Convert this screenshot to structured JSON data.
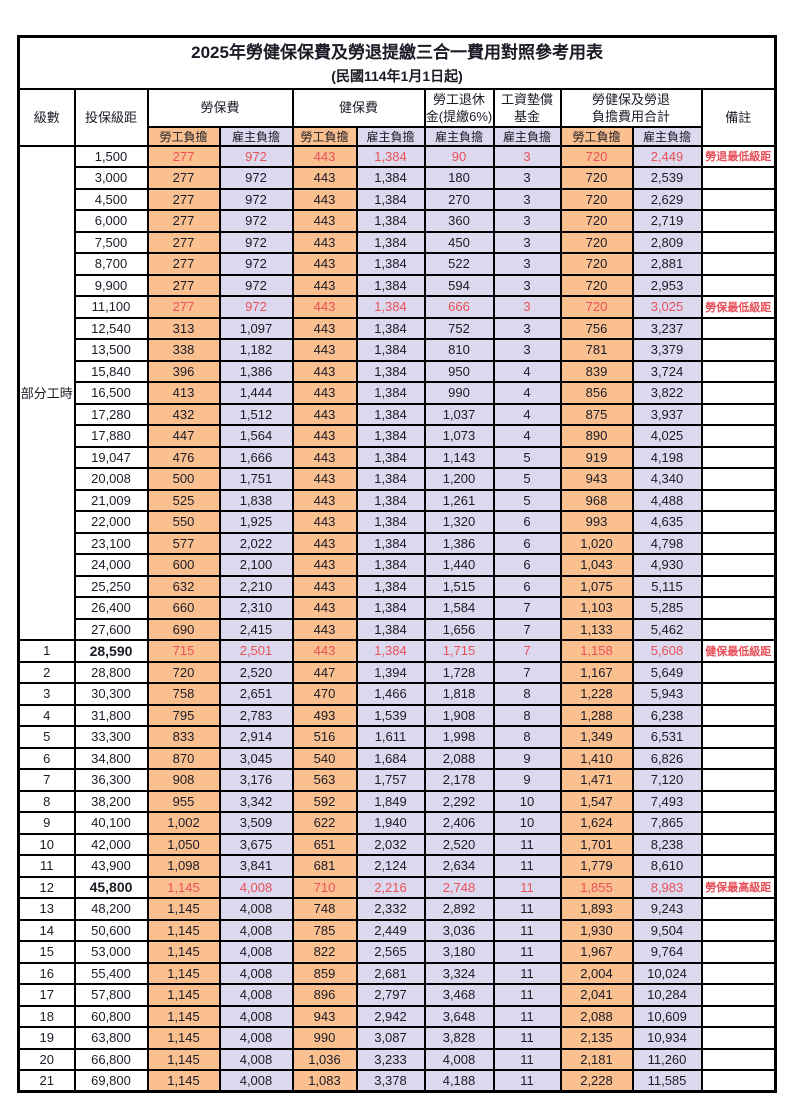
{
  "title": "2025年勞健保保費及勞退提繳三合一費用對照參考用表",
  "subtitle": "(民國114年1月1日起)",
  "colors": {
    "employee_bg": "#fac090",
    "employer_bg": "#dcd9ee",
    "highlight_text": "#e8515a",
    "border": "#000000"
  },
  "header": {
    "level": "級數",
    "bracket": "投保級距",
    "labor": "勞保費",
    "health": "健保費",
    "pension": "勞工退休\n金(提繳6%)",
    "wage_fund": "工資墊償\n基金",
    "total": "勞健保及勞退\n負擔費用合計",
    "remark": "備註",
    "employee": "勞工負擔",
    "employer": "雇主負擔"
  },
  "table": {
    "part_time_label": "部分工時",
    "part_time_rowspan": 23,
    "rows": [
      {
        "level": "",
        "bracket": "1,500",
        "values": [
          "277",
          "972",
          "443",
          "1,384",
          "90",
          "3",
          "720",
          "2,449"
        ],
        "remark": "勞退最低級距",
        "red": true,
        "bold": false
      },
      {
        "level": "",
        "bracket": "3,000",
        "values": [
          "277",
          "972",
          "443",
          "1,384",
          "180",
          "3",
          "720",
          "2,539"
        ],
        "remark": "",
        "red": false,
        "bold": false
      },
      {
        "level": "",
        "bracket": "4,500",
        "values": [
          "277",
          "972",
          "443",
          "1,384",
          "270",
          "3",
          "720",
          "2,629"
        ],
        "remark": "",
        "red": false,
        "bold": false
      },
      {
        "level": "",
        "bracket": "6,000",
        "values": [
          "277",
          "972",
          "443",
          "1,384",
          "360",
          "3",
          "720",
          "2,719"
        ],
        "remark": "",
        "red": false,
        "bold": false
      },
      {
        "level": "",
        "bracket": "7,500",
        "values": [
          "277",
          "972",
          "443",
          "1,384",
          "450",
          "3",
          "720",
          "2,809"
        ],
        "remark": "",
        "red": false,
        "bold": false
      },
      {
        "level": "",
        "bracket": "8,700",
        "values": [
          "277",
          "972",
          "443",
          "1,384",
          "522",
          "3",
          "720",
          "2,881"
        ],
        "remark": "",
        "red": false,
        "bold": false
      },
      {
        "level": "",
        "bracket": "9,900",
        "values": [
          "277",
          "972",
          "443",
          "1,384",
          "594",
          "3",
          "720",
          "2,953"
        ],
        "remark": "",
        "red": false,
        "bold": false
      },
      {
        "level": "",
        "bracket": "11,100",
        "values": [
          "277",
          "972",
          "443",
          "1,384",
          "666",
          "3",
          "720",
          "3,025"
        ],
        "remark": "勞保最低級距",
        "red": true,
        "bold": false
      },
      {
        "level": "",
        "bracket": "12,540",
        "values": [
          "313",
          "1,097",
          "443",
          "1,384",
          "752",
          "3",
          "756",
          "3,237"
        ],
        "remark": "",
        "red": false,
        "bold": false
      },
      {
        "level": "",
        "bracket": "13,500",
        "values": [
          "338",
          "1,182",
          "443",
          "1,384",
          "810",
          "3",
          "781",
          "3,379"
        ],
        "remark": "",
        "red": false,
        "bold": false
      },
      {
        "level": "",
        "bracket": "15,840",
        "values": [
          "396",
          "1,386",
          "443",
          "1,384",
          "950",
          "4",
          "839",
          "3,724"
        ],
        "remark": "",
        "red": false,
        "bold": false
      },
      {
        "level": "",
        "bracket": "16,500",
        "values": [
          "413",
          "1,444",
          "443",
          "1,384",
          "990",
          "4",
          "856",
          "3,822"
        ],
        "remark": "",
        "red": false,
        "bold": false
      },
      {
        "level": "",
        "bracket": "17,280",
        "values": [
          "432",
          "1,512",
          "443",
          "1,384",
          "1,037",
          "4",
          "875",
          "3,937"
        ],
        "remark": "",
        "red": false,
        "bold": false
      },
      {
        "level": "",
        "bracket": "17,880",
        "values": [
          "447",
          "1,564",
          "443",
          "1,384",
          "1,073",
          "4",
          "890",
          "4,025"
        ],
        "remark": "",
        "red": false,
        "bold": false
      },
      {
        "level": "",
        "bracket": "19,047",
        "values": [
          "476",
          "1,666",
          "443",
          "1,384",
          "1,143",
          "5",
          "919",
          "4,198"
        ],
        "remark": "",
        "red": false,
        "bold": false
      },
      {
        "level": "",
        "bracket": "20,008",
        "values": [
          "500",
          "1,751",
          "443",
          "1,384",
          "1,200",
          "5",
          "943",
          "4,340"
        ],
        "remark": "",
        "red": false,
        "bold": false
      },
      {
        "level": "",
        "bracket": "21,009",
        "values": [
          "525",
          "1,838",
          "443",
          "1,384",
          "1,261",
          "5",
          "968",
          "4,488"
        ],
        "remark": "",
        "red": false,
        "bold": false
      },
      {
        "level": "",
        "bracket": "22,000",
        "values": [
          "550",
          "1,925",
          "443",
          "1,384",
          "1,320",
          "6",
          "993",
          "4,635"
        ],
        "remark": "",
        "red": false,
        "bold": false
      },
      {
        "level": "",
        "bracket": "23,100",
        "values": [
          "577",
          "2,022",
          "443",
          "1,384",
          "1,386",
          "6",
          "1,020",
          "4,798"
        ],
        "remark": "",
        "red": false,
        "bold": false
      },
      {
        "level": "",
        "bracket": "24,000",
        "values": [
          "600",
          "2,100",
          "443",
          "1,384",
          "1,440",
          "6",
          "1,043",
          "4,930"
        ],
        "remark": "",
        "red": false,
        "bold": false
      },
      {
        "level": "",
        "bracket": "25,250",
        "values": [
          "632",
          "2,210",
          "443",
          "1,384",
          "1,515",
          "6",
          "1,075",
          "5,115"
        ],
        "remark": "",
        "red": false,
        "bold": false
      },
      {
        "level": "",
        "bracket": "26,400",
        "values": [
          "660",
          "2,310",
          "443",
          "1,384",
          "1,584",
          "7",
          "1,103",
          "5,285"
        ],
        "remark": "",
        "red": false,
        "bold": false
      },
      {
        "level": "",
        "bracket": "27,600",
        "values": [
          "690",
          "2,415",
          "443",
          "1,384",
          "1,656",
          "7",
          "1,133",
          "5,462"
        ],
        "remark": "",
        "red": false,
        "bold": false
      },
      {
        "level": "1",
        "bracket": "28,590",
        "values": [
          "715",
          "2,501",
          "443",
          "1,384",
          "1,715",
          "7",
          "1,158",
          "5,608"
        ],
        "remark": "健保最低級距",
        "red": true,
        "bold": true
      },
      {
        "level": "2",
        "bracket": "28,800",
        "values": [
          "720",
          "2,520",
          "447",
          "1,394",
          "1,728",
          "7",
          "1,167",
          "5,649"
        ],
        "remark": "",
        "red": false,
        "bold": false
      },
      {
        "level": "3",
        "bracket": "30,300",
        "values": [
          "758",
          "2,651",
          "470",
          "1,466",
          "1,818",
          "8",
          "1,228",
          "5,943"
        ],
        "remark": "",
        "red": false,
        "bold": false
      },
      {
        "level": "4",
        "bracket": "31,800",
        "values": [
          "795",
          "2,783",
          "493",
          "1,539",
          "1,908",
          "8",
          "1,288",
          "6,238"
        ],
        "remark": "",
        "red": false,
        "bold": false
      },
      {
        "level": "5",
        "bracket": "33,300",
        "values": [
          "833",
          "2,914",
          "516",
          "1,611",
          "1,998",
          "8",
          "1,349",
          "6,531"
        ],
        "remark": "",
        "red": false,
        "bold": false
      },
      {
        "level": "6",
        "bracket": "34,800",
        "values": [
          "870",
          "3,045",
          "540",
          "1,684",
          "2,088",
          "9",
          "1,410",
          "6,826"
        ],
        "remark": "",
        "red": false,
        "bold": false
      },
      {
        "level": "7",
        "bracket": "36,300",
        "values": [
          "908",
          "3,176",
          "563",
          "1,757",
          "2,178",
          "9",
          "1,471",
          "7,120"
        ],
        "remark": "",
        "red": false,
        "bold": false
      },
      {
        "level": "8",
        "bracket": "38,200",
        "values": [
          "955",
          "3,342",
          "592",
          "1,849",
          "2,292",
          "10",
          "1,547",
          "7,493"
        ],
        "remark": "",
        "red": false,
        "bold": false
      },
      {
        "level": "9",
        "bracket": "40,100",
        "values": [
          "1,002",
          "3,509",
          "622",
          "1,940",
          "2,406",
          "10",
          "1,624",
          "7,865"
        ],
        "remark": "",
        "red": false,
        "bold": false
      },
      {
        "level": "10",
        "bracket": "42,000",
        "values": [
          "1,050",
          "3,675",
          "651",
          "2,032",
          "2,520",
          "11",
          "1,701",
          "8,238"
        ],
        "remark": "",
        "red": false,
        "bold": false
      },
      {
        "level": "11",
        "bracket": "43,900",
        "values": [
          "1,098",
          "3,841",
          "681",
          "2,124",
          "2,634",
          "11",
          "1,779",
          "8,610"
        ],
        "remark": "",
        "red": false,
        "bold": false
      },
      {
        "level": "12",
        "bracket": "45,800",
        "values": [
          "1,145",
          "4,008",
          "710",
          "2,216",
          "2,748",
          "11",
          "1,855",
          "8,983"
        ],
        "remark": "勞保最高級距",
        "red": true,
        "bold": true
      },
      {
        "level": "13",
        "bracket": "48,200",
        "values": [
          "1,145",
          "4,008",
          "748",
          "2,332",
          "2,892",
          "11",
          "1,893",
          "9,243"
        ],
        "remark": "",
        "red": false,
        "bold": false
      },
      {
        "level": "14",
        "bracket": "50,600",
        "values": [
          "1,145",
          "4,008",
          "785",
          "2,449",
          "3,036",
          "11",
          "1,930",
          "9,504"
        ],
        "remark": "",
        "red": false,
        "bold": false
      },
      {
        "level": "15",
        "bracket": "53,000",
        "values": [
          "1,145",
          "4,008",
          "822",
          "2,565",
          "3,180",
          "11",
          "1,967",
          "9,764"
        ],
        "remark": "",
        "red": false,
        "bold": false
      },
      {
        "level": "16",
        "bracket": "55,400",
        "values": [
          "1,145",
          "4,008",
          "859",
          "2,681",
          "3,324",
          "11",
          "2,004",
          "10,024"
        ],
        "remark": "",
        "red": false,
        "bold": false
      },
      {
        "level": "17",
        "bracket": "57,800",
        "values": [
          "1,145",
          "4,008",
          "896",
          "2,797",
          "3,468",
          "11",
          "2,041",
          "10,284"
        ],
        "remark": "",
        "red": false,
        "bold": false
      },
      {
        "level": "18",
        "bracket": "60,800",
        "values": [
          "1,145",
          "4,008",
          "943",
          "2,942",
          "3,648",
          "11",
          "2,088",
          "10,609"
        ],
        "remark": "",
        "red": false,
        "bold": false
      },
      {
        "level": "19",
        "bracket": "63,800",
        "values": [
          "1,145",
          "4,008",
          "990",
          "3,087",
          "3,828",
          "11",
          "2,135",
          "10,934"
        ],
        "remark": "",
        "red": false,
        "bold": false
      },
      {
        "level": "20",
        "bracket": "66,800",
        "values": [
          "1,145",
          "4,008",
          "1,036",
          "3,233",
          "4,008",
          "11",
          "2,181",
          "11,260"
        ],
        "remark": "",
        "red": false,
        "bold": false
      },
      {
        "level": "21",
        "bracket": "69,800",
        "values": [
          "1,145",
          "4,008",
          "1,083",
          "3,378",
          "4,188",
          "11",
          "2,228",
          "11,585"
        ],
        "remark": "",
        "red": false,
        "bold": false
      }
    ]
  }
}
